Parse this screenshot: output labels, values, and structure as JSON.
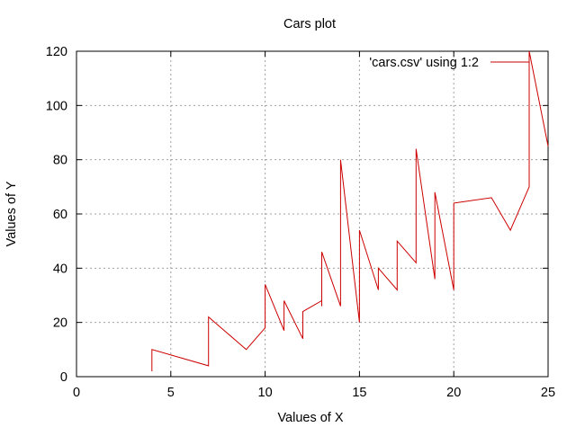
{
  "chart_data": {
    "type": "line",
    "title": "Cars plot",
    "xlabel": "Values of X",
    "ylabel": "Values of Y",
    "xlim": [
      0,
      25
    ],
    "ylim": [
      0,
      120
    ],
    "xticks": [
      0,
      5,
      10,
      15,
      20,
      25
    ],
    "yticks": [
      0,
      20,
      40,
      60,
      80,
      100,
      120
    ],
    "grid": true,
    "legend_position": "top-right",
    "series": [
      {
        "name": "'cars.csv' using 1:2",
        "color": "#cc0000",
        "x": [
          4,
          4,
          7,
          7,
          8,
          9,
          10,
          10,
          10,
          11,
          11,
          12,
          12,
          12,
          13,
          13,
          13,
          13,
          14,
          14,
          14,
          14,
          15,
          15,
          15,
          16,
          16,
          17,
          17,
          17,
          18,
          18,
          18,
          18,
          19,
          19,
          19,
          20,
          20,
          20,
          20,
          20,
          22,
          23,
          24,
          24,
          24,
          24,
          25
        ],
        "y": [
          2,
          10,
          4,
          22,
          16,
          10,
          18,
          26,
          34,
          17,
          28,
          14,
          20,
          24,
          28,
          26,
          34,
          46,
          26,
          36,
          60,
          80,
          20,
          26,
          54,
          32,
          40,
          32,
          40,
          50,
          42,
          56,
          76,
          84,
          36,
          46,
          68,
          32,
          48,
          52,
          56,
          64,
          66,
          54,
          70,
          92,
          93,
          120,
          85
        ]
      }
    ]
  }
}
